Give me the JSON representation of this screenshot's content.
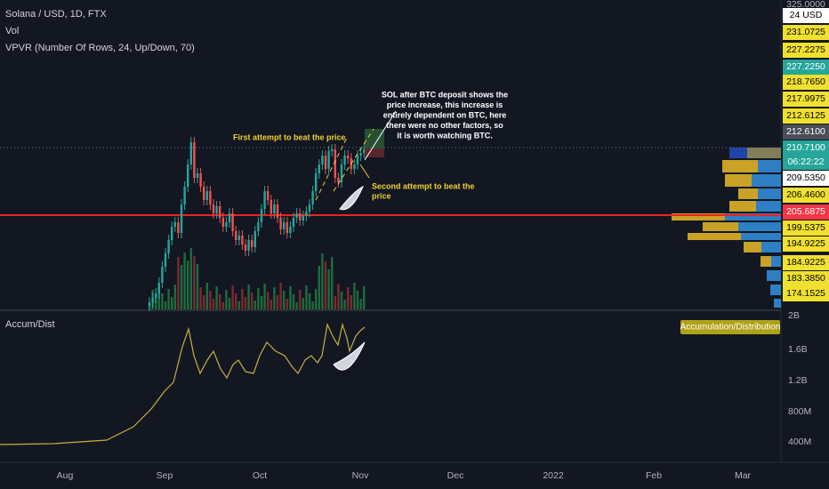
{
  "header": {
    "symbol": "Solana / USD, 1D, FTX",
    "volume": "Vol",
    "vpvr": "VPVR (Number Of Rows, 24, Up/Down, 70)"
  },
  "price_axis": [
    "325.0000",
    "24 USD",
    "231.0725",
    "227.2275",
    "227.2250",
    "218.7650",
    "217.9975",
    "212.6125",
    "212.6100",
    "210.7100",
    "06:22:22",
    "209.5350",
    "206.4600",
    "205.6875",
    "199.5375",
    "194.9225",
    "184.9225",
    "183.3850",
    "174.1525"
  ],
  "annotations": {
    "first": "First attempt to beat the price",
    "second": [
      "Second attempt to beat the",
      "price"
    ],
    "note": [
      "SOL after BTC deposit shows the",
      "price increase, this increase is",
      "entirely dependent on BTC, here",
      "there were no other factors, so",
      "it is worth watching BTC."
    ]
  },
  "indicator": {
    "name": "Accum/Dist",
    "badge": "Accumulation/Distribution",
    "axis": [
      "2B",
      "1.6B",
      "1.2B",
      "800M",
      "400M"
    ]
  },
  "time_axis": [
    "Aug",
    "Sep",
    "Oct",
    "Nov",
    "Dec",
    "2022",
    "Feb",
    "Mar"
  ]
}
